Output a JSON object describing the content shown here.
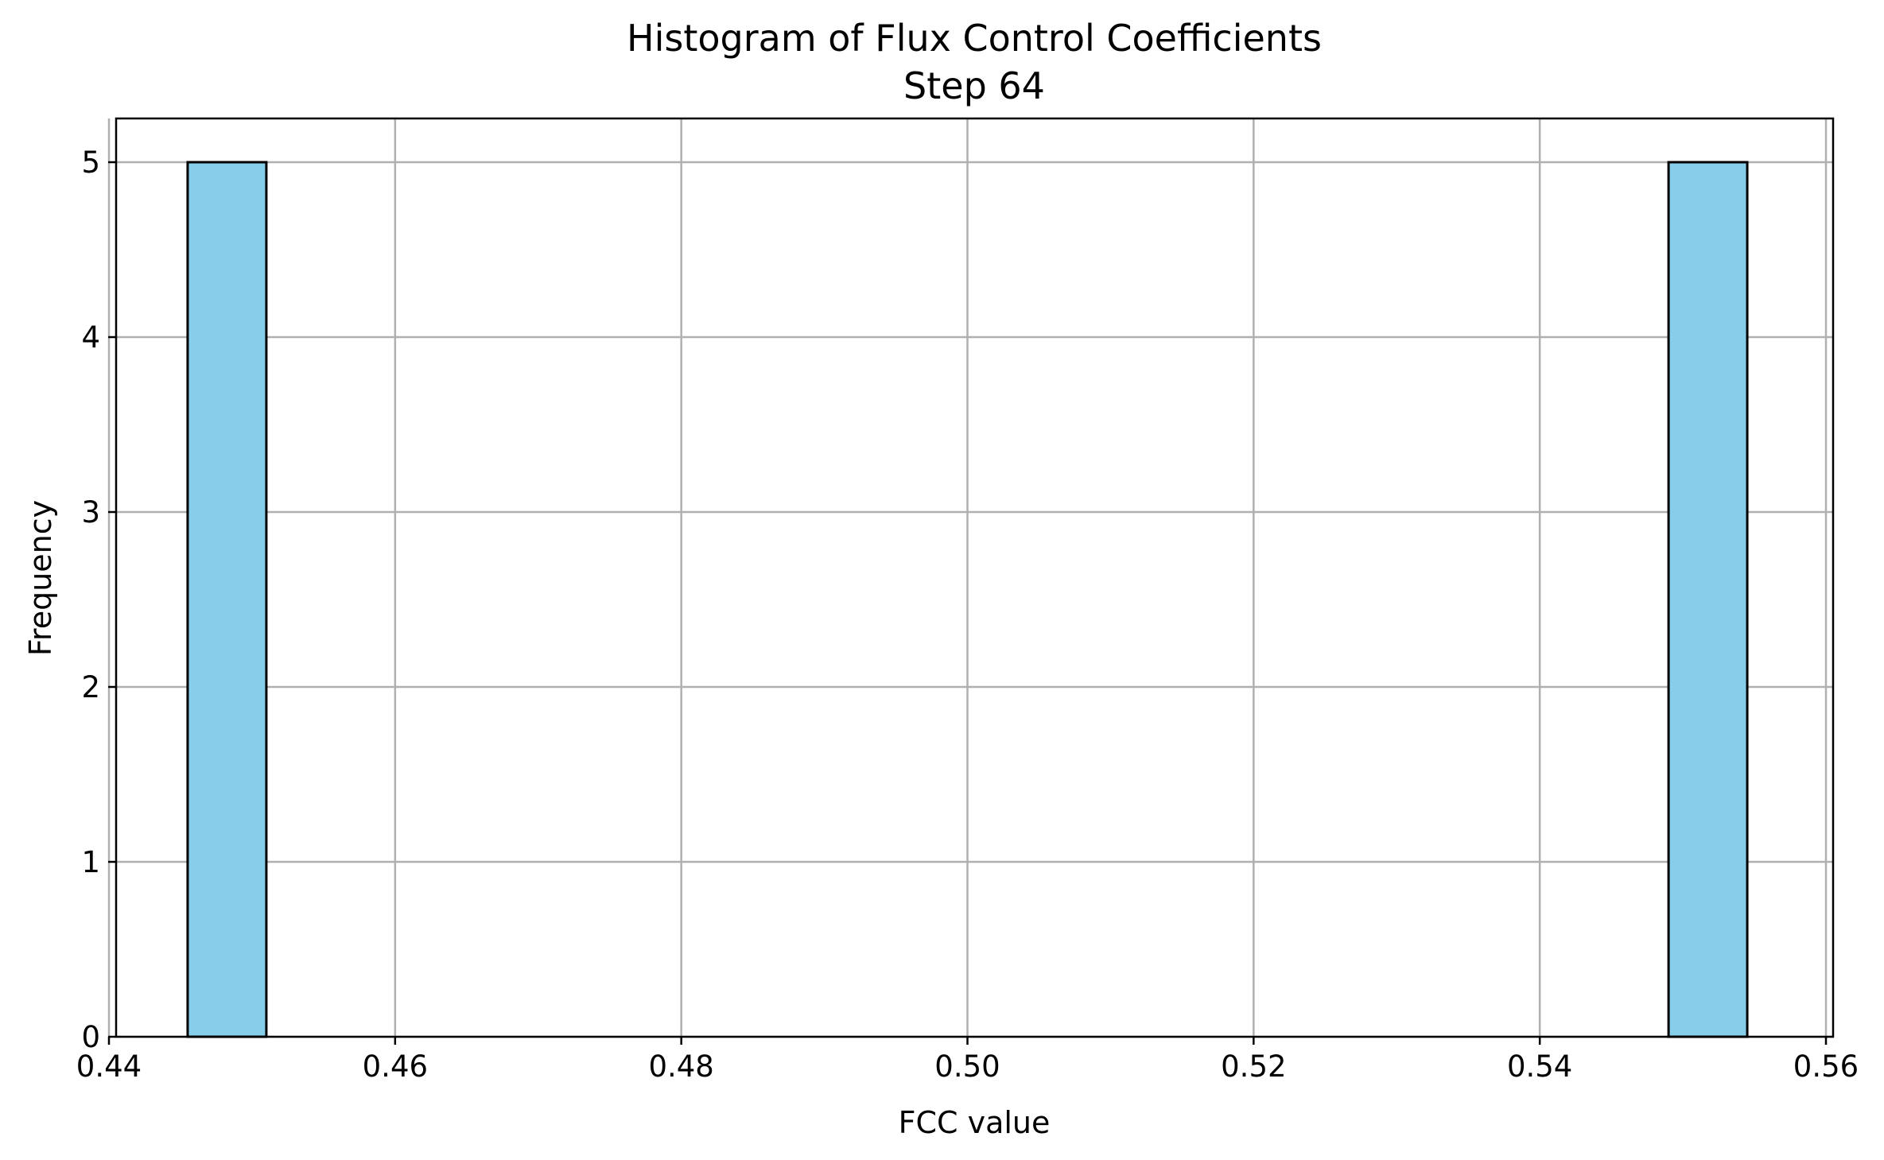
{
  "chart_data": {
    "type": "bar",
    "title": "Histogram of Flux Control Coefficients",
    "subtitle": "Step 64",
    "xlabel": "FCC value",
    "ylabel": "Frequency",
    "xlim": [
      0.4405,
      0.5605
    ],
    "ylim": [
      0,
      5.25
    ],
    "xticks": [
      "0.44",
      "0.46",
      "0.48",
      "0.50",
      "0.52",
      "0.54",
      "0.56"
    ],
    "yticks": [
      "0",
      "1",
      "2",
      "3",
      "4",
      "5"
    ],
    "bins": [
      {
        "x0": 0.4455,
        "x1": 0.451,
        "count": 5
      },
      {
        "x0": 0.549,
        "x1": 0.5545,
        "count": 5
      }
    ],
    "grid": true,
    "bar_color": "#87ceeb",
    "bar_edge_color": "#000000",
    "grid_color": "#b0b0b0"
  }
}
